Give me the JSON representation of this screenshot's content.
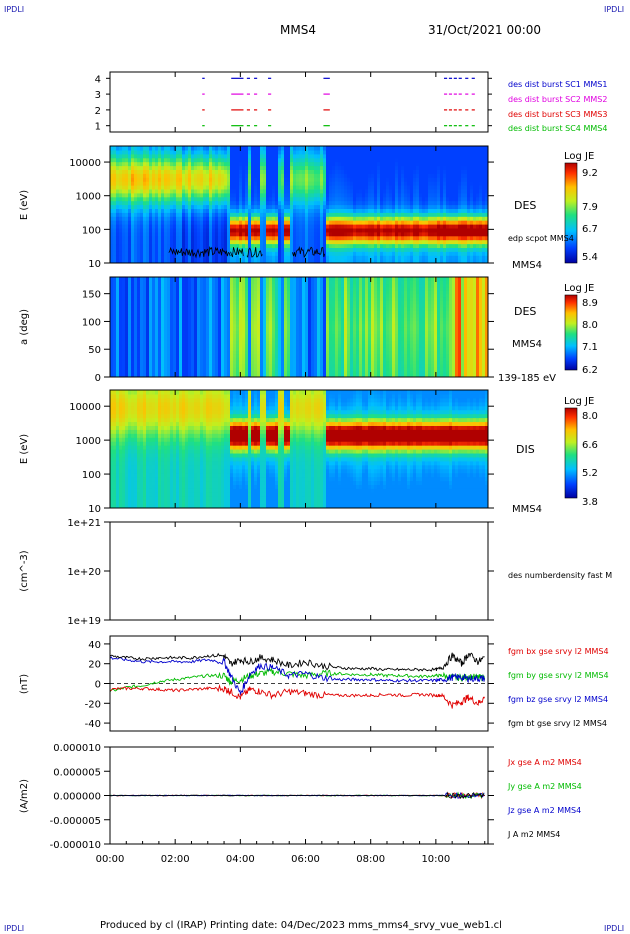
{
  "header": {
    "corner_left": "IPDLI",
    "corner_right": "IPDLI",
    "title": "MMS4",
    "date": "31/Oct/2021 00:00"
  },
  "footer": {
    "text": "Produced by cl (IRAP)   Printing date: 04/Dec/2023   mms_mms4_srvy_vue_web1.cl",
    "corner_left": "IPDLI",
    "corner_right": "IPDLI"
  },
  "chart_data": [
    {
      "type": "scatter",
      "panel": "burst-availability",
      "yticks": [
        "1",
        "2",
        "3",
        "4"
      ],
      "ylim": [
        0.6,
        4.4
      ],
      "series": [
        {
          "name": "des dist burst SC1 MMS1",
          "color": "#0000cc",
          "y": 4
        },
        {
          "name": "des dist burst SC2 MMS2",
          "color": "#e000e0",
          "y": 3
        },
        {
          "name": "des dist burst SC3 MMS3",
          "color": "#e00000",
          "y": 2
        },
        {
          "name": "des dist burst SC4 MMS4",
          "color": "#00bb00",
          "y": 1
        }
      ],
      "intervals_hours": [
        [
          2.83,
          2.86
        ],
        [
          3.72,
          4.05
        ],
        [
          4.2,
          4.25
        ],
        [
          4.42,
          4.47
        ],
        [
          4.85,
          4.9
        ],
        [
          6.55,
          6.7
        ],
        [
          10.25,
          10.3
        ],
        [
          10.4,
          10.45
        ],
        [
          10.55,
          10.6
        ],
        [
          10.7,
          10.75
        ],
        [
          10.9,
          10.95
        ],
        [
          11.1,
          11.15
        ]
      ]
    },
    {
      "type": "heatmap",
      "panel": "des-energy",
      "ylabel": "E (eV)",
      "yscale": "log",
      "yticks": [
        "10",
        "100",
        "1000",
        "10000"
      ],
      "ylim": [
        10,
        30000
      ],
      "side_label": "DES",
      "overlay_label": "edp scpot MMS4",
      "spacecraft_label": "MMS4",
      "colorbar": {
        "title": "Log JE",
        "ticks": [
          "9.2",
          "7.9",
          "6.7",
          "5.4"
        ],
        "range": [
          5.4,
          9.2
        ]
      }
    },
    {
      "type": "heatmap",
      "panel": "des-pitch",
      "ylabel": "a (deg)",
      "yticks": [
        "0",
        "50",
        "100",
        "150"
      ],
      "ylim": [
        0,
        180
      ],
      "side_label": "DES",
      "spacecraft_label": "MMS4",
      "energy_label": "139-185 eV",
      "colorbar": {
        "title": "Log JE",
        "ticks": [
          "8.9",
          "8.0",
          "7.1",
          "6.2"
        ],
        "range": [
          6.2,
          8.9
        ]
      }
    },
    {
      "type": "heatmap",
      "panel": "dis-energy",
      "ylabel": "E (eV)",
      "yscale": "log",
      "yticks": [
        "10",
        "100",
        "1000",
        "10000"
      ],
      "ylim": [
        10,
        30000
      ],
      "side_label": "DIS",
      "spacecraft_label": "MMS4",
      "colorbar": {
        "title": "Log JE",
        "ticks": [
          "8.0",
          "6.6",
          "5.2",
          "3.8"
        ],
        "range": [
          3.8,
          8.0
        ]
      }
    },
    {
      "type": "line",
      "panel": "density",
      "ylabel": "(cm^-3)",
      "yscale": "log",
      "yticks": [
        "1e+19",
        "1e+20",
        "1e+21"
      ],
      "ylim": [
        1e+19,
        1e+21
      ],
      "series": [
        {
          "name": "des numberdensity fast M",
          "color": "#000000",
          "values": []
        }
      ]
    },
    {
      "type": "line",
      "panel": "magnetic-field",
      "ylabel": "(nT)",
      "yticks": [
        "-40",
        "-20",
        "0",
        "20",
        "40"
      ],
      "ylim": [
        -48,
        48
      ],
      "x": [
        0,
        0.5,
        1,
        1.5,
        2,
        2.5,
        3,
        3.5,
        3.7,
        4,
        4.3,
        4.6,
        5,
        5.5,
        6,
        6.5,
        7,
        7.5,
        8,
        8.5,
        9,
        9.5,
        10,
        10.2,
        10.5,
        10.8,
        11,
        11.3,
        11.5
      ],
      "series": [
        {
          "name": "fgm bx gse srvy l2 MMS4",
          "color": "#e00000",
          "values": [
            -6,
            -5,
            -5,
            -6,
            -7,
            -6,
            -5,
            -5,
            -8,
            -14,
            -6,
            -8,
            -12,
            -8,
            -10,
            -12,
            -12,
            -12,
            -12,
            -11,
            -12,
            -11,
            -12,
            -12,
            -22,
            -18,
            -14,
            -20,
            -14
          ]
        },
        {
          "name": "fgm by gse srvy l2 MMS4",
          "color": "#00bb00",
          "values": [
            -8,
            -4,
            -2,
            2,
            4,
            6,
            8,
            8,
            2,
            4,
            8,
            10,
            12,
            10,
            8,
            10,
            10,
            9,
            9,
            8,
            8,
            7,
            8,
            8,
            6,
            6,
            7,
            6,
            6
          ]
        },
        {
          "name": "fgm bz gse srvy l2 MMS4",
          "color": "#0000cc",
          "values": [
            26,
            24,
            22,
            22,
            22,
            22,
            24,
            22,
            8,
            -10,
            10,
            18,
            16,
            8,
            10,
            6,
            4,
            4,
            4,
            3,
            3,
            3,
            3,
            4,
            6,
            6,
            5,
            5,
            5
          ]
        },
        {
          "name": "fgm bt gse srvy l2 MMS4",
          "color": "#000000",
          "values": [
            28,
            26,
            25,
            26,
            26,
            26,
            28,
            28,
            20,
            24,
            22,
            26,
            24,
            18,
            22,
            18,
            16,
            15,
            15,
            14,
            14,
            14,
            14,
            16,
            28,
            20,
            30,
            22,
            26
          ]
        }
      ]
    },
    {
      "type": "line",
      "panel": "current-density",
      "ylabel": "(A/m2)",
      "yticks": [
        "-0.000010",
        "-0.000005",
        "0.000000",
        "0.000005",
        "0.000010"
      ],
      "ylim": [
        -1e-05,
        1e-05
      ],
      "series": [
        {
          "name": "Jx gse A m2 MMS4",
          "color": "#e00000"
        },
        {
          "name": "Jy gse A m2 MMS4",
          "color": "#00bb00"
        },
        {
          "name": "Jz gse A m2 MMS4",
          "color": "#0000cc"
        },
        {
          "name": "J A m2 MMS4",
          "color": "#000000"
        }
      ]
    }
  ],
  "xaxis": {
    "ticks": [
      "00:00",
      "02:00",
      "04:00",
      "06:00",
      "08:00",
      "10:00"
    ],
    "hours": [
      0,
      2,
      4,
      6,
      8,
      10
    ],
    "xlim_hours": [
      0,
      11.6
    ]
  }
}
